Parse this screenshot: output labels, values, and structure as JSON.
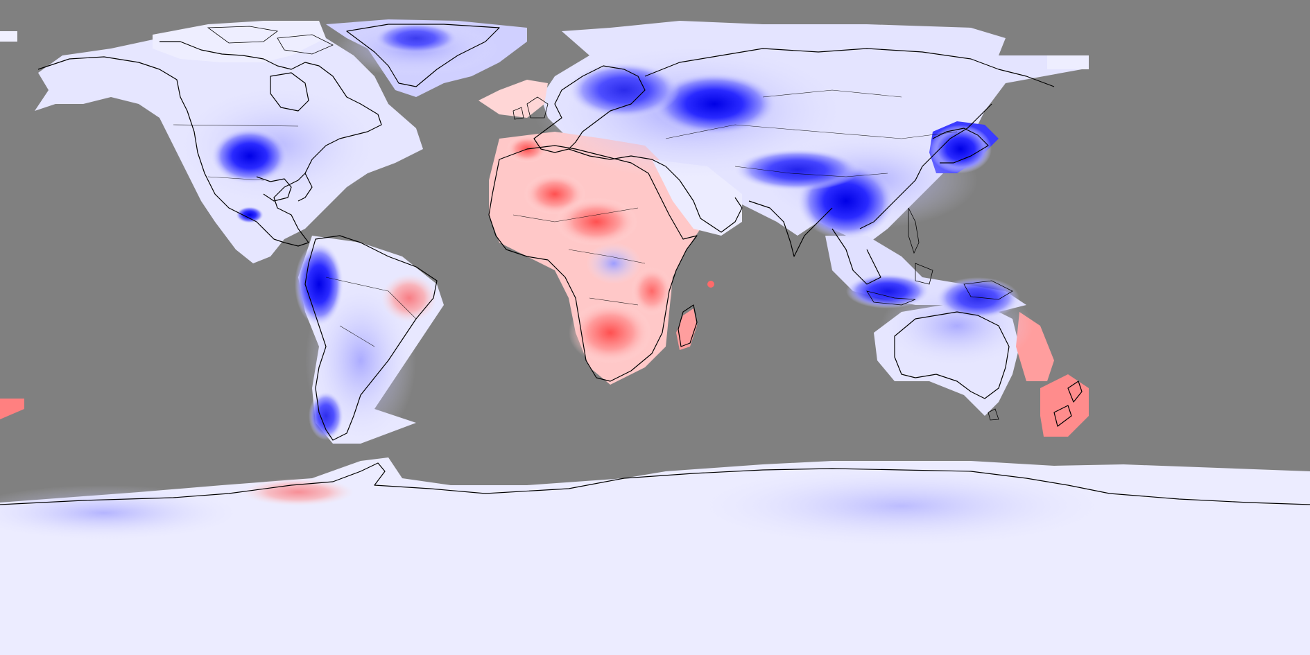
{
  "map": {
    "projection": "equirectangular",
    "background_color": "#808080",
    "colors": {
      "strong_cold": "#0000e6",
      "cold": "#8c8cff",
      "neutral": "#f4f4ff",
      "warm": "#ff9e9e",
      "strong_warm": "#ff5a5a"
    }
  }
}
